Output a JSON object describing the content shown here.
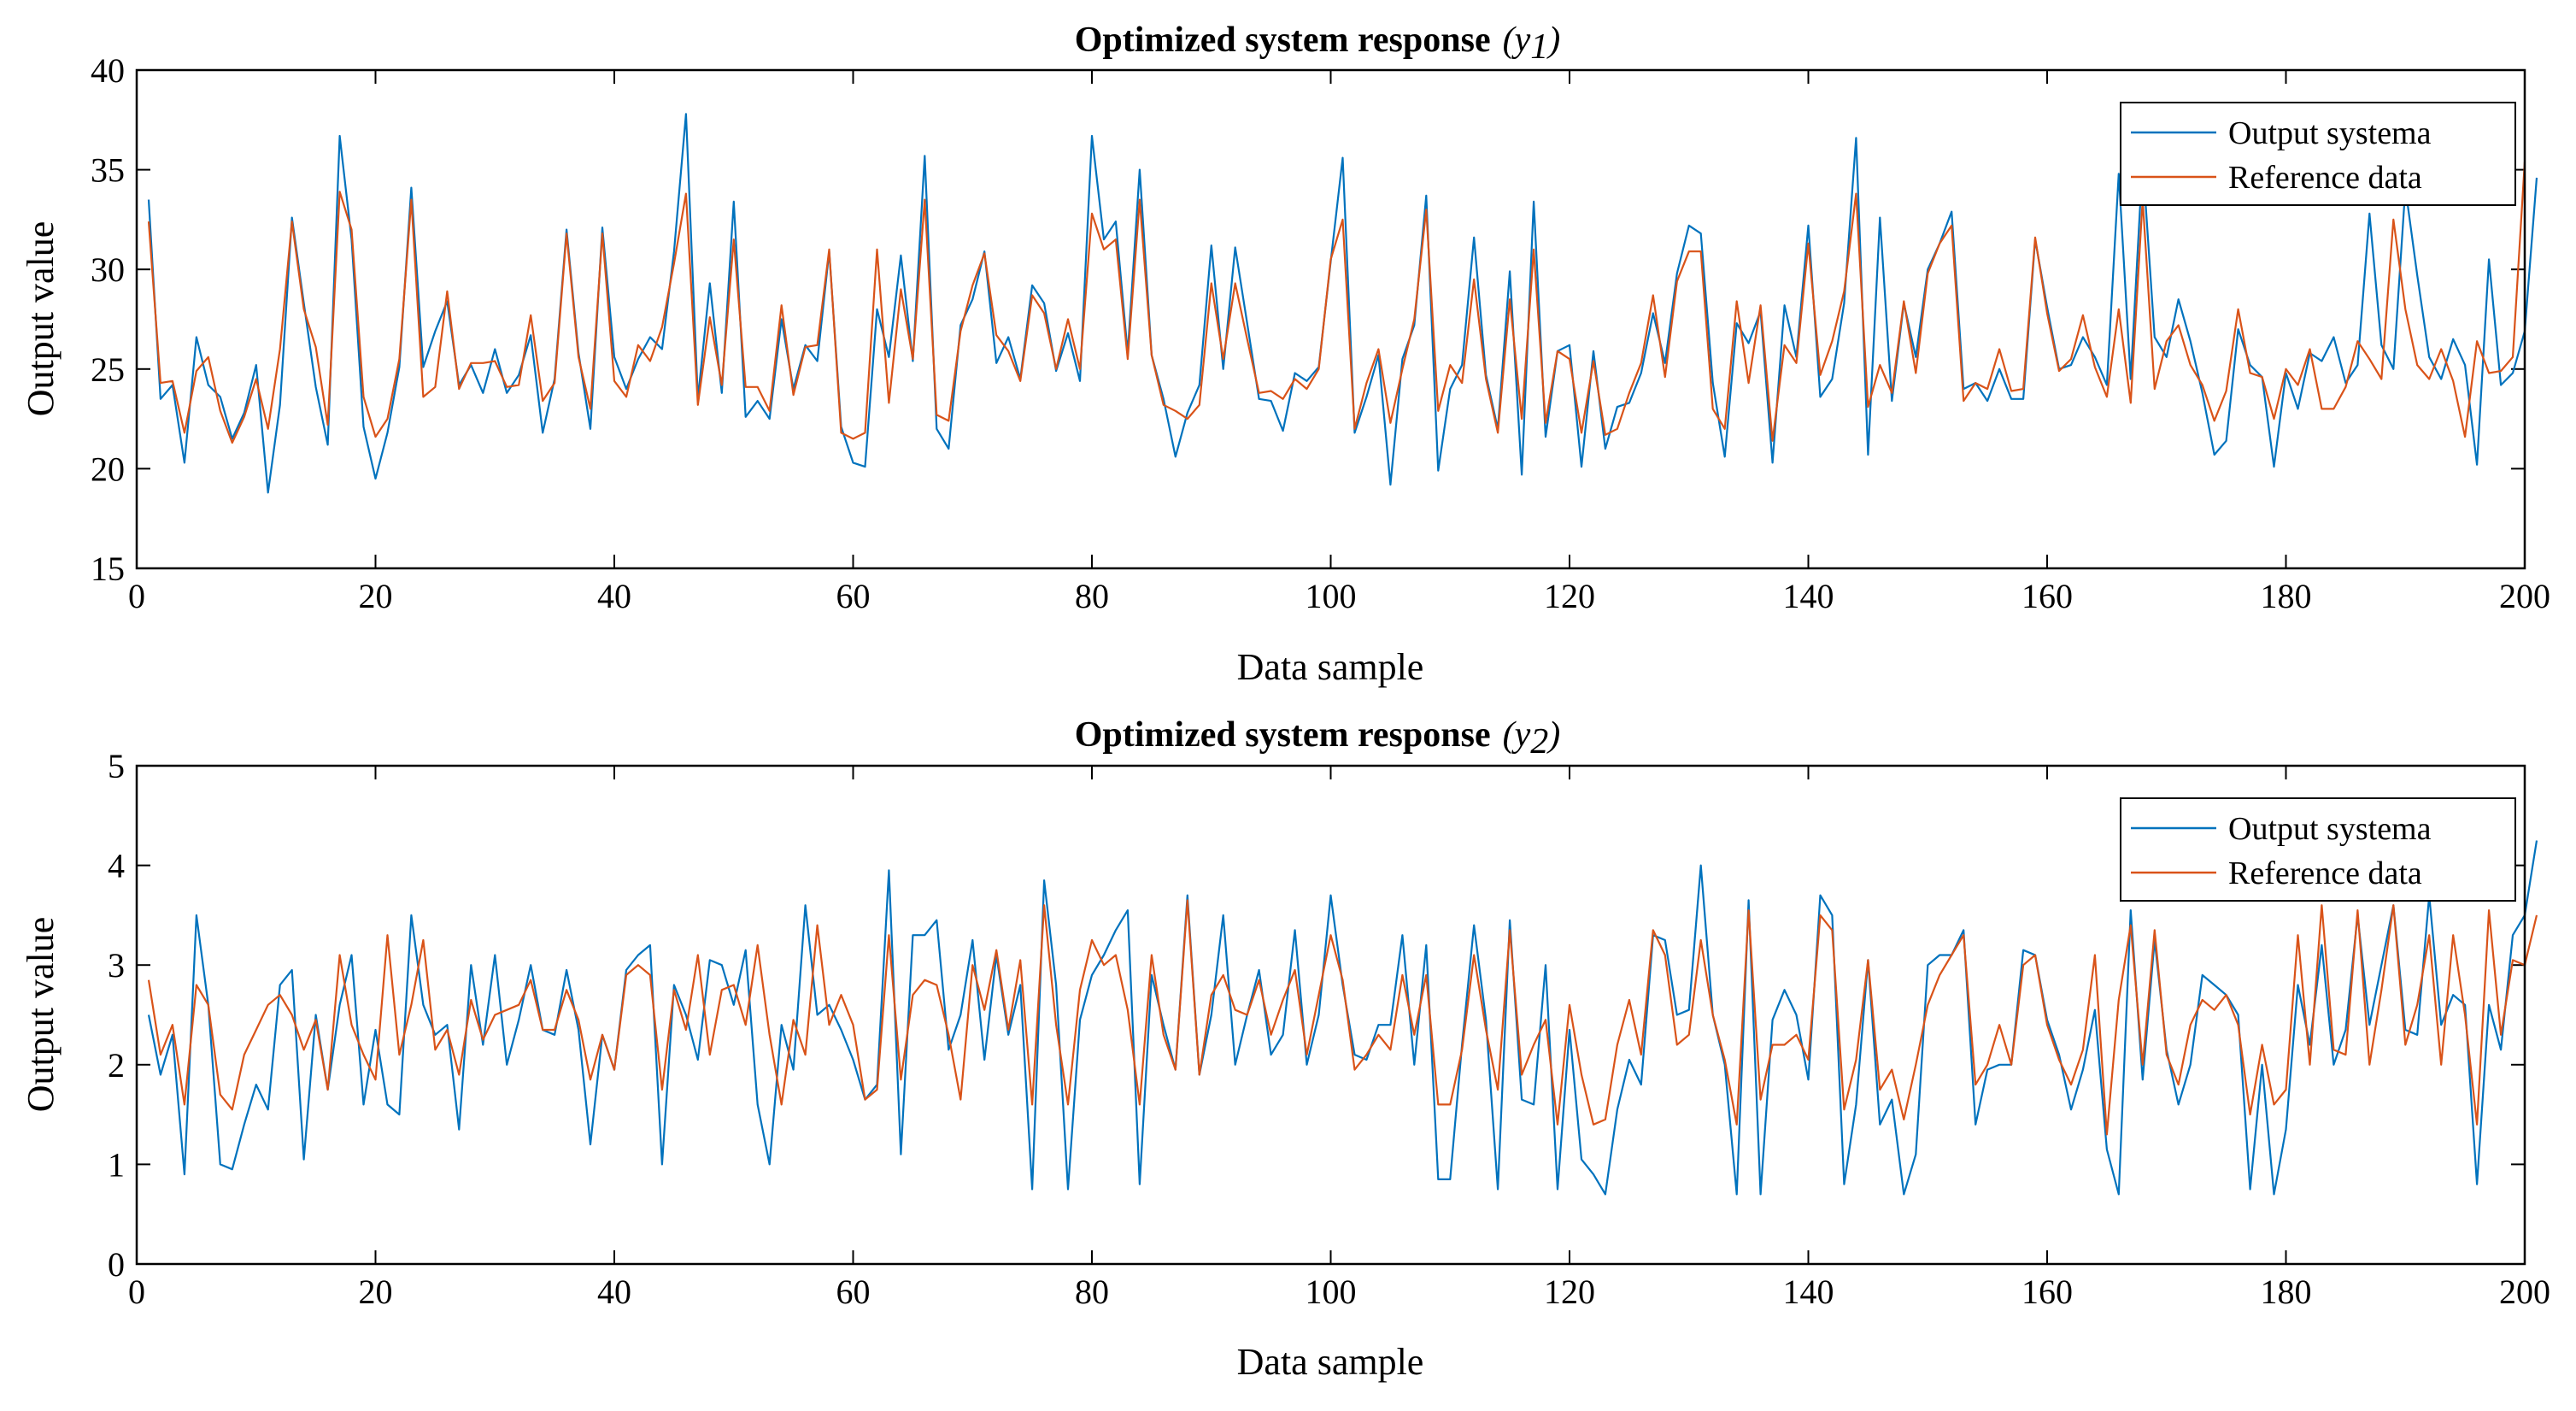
{
  "chart_data": [
    {
      "type": "line",
      "title_main": "Optimized system response",
      "title_var": "(y",
      "title_sub": "1",
      "title_close": ")",
      "xlabel": "Data sample",
      "ylabel": "Output value",
      "xlim": [
        0,
        200
      ],
      "ylim": [
        15,
        40
      ],
      "xticks": [
        0,
        20,
        40,
        60,
        80,
        100,
        120,
        140,
        160,
        180,
        200
      ],
      "yticks": [
        15,
        20,
        25,
        30,
        35,
        40
      ],
      "legend": "top-right",
      "x_start": 1,
      "series": [
        {
          "name": "Output systema",
          "color": "#0072BD",
          "values": [
            33.5,
            23.5,
            24.2,
            20.3,
            26.6,
            24.2,
            23.6,
            21.5,
            22.8,
            25.2,
            18.8,
            23.2,
            32.6,
            28.3,
            24.1,
            21.2,
            36.7,
            31.5,
            22.1,
            19.5,
            21.8,
            25.1,
            34.1,
            25.1,
            26.9,
            28.4,
            24.2,
            25.2,
            23.8,
            26.0,
            23.8,
            24.7,
            26.7,
            21.8,
            24.5,
            32.0,
            25.8,
            22.0,
            32.1,
            25.6,
            24.0,
            25.5,
            26.6,
            26.0,
            30.9,
            37.8,
            23.5,
            29.3,
            23.8,
            33.4,
            22.6,
            23.4,
            22.5,
            27.5,
            24.0,
            26.2,
            25.4,
            30.9,
            22.1,
            20.3,
            20.1,
            28.0,
            25.6,
            30.7,
            25.4,
            35.7,
            22.0,
            21.0,
            27.2,
            28.5,
            30.9,
            25.3,
            26.6,
            24.5,
            29.2,
            28.3,
            24.9,
            26.8,
            24.4,
            36.7,
            31.5,
            32.4,
            25.8,
            35.0,
            25.7,
            23.5,
            20.6,
            22.8,
            24.2,
            31.2,
            25.0,
            31.1,
            27.3,
            23.5,
            23.4,
            21.9,
            24.8,
            24.4,
            25.1,
            30.4,
            35.6,
            21.8,
            23.6,
            25.7,
            19.2,
            25.5,
            27.2,
            33.7,
            19.9,
            24.0,
            25.2,
            31.6,
            24.7,
            22.0,
            29.9,
            19.7,
            33.4,
            21.6,
            25.9,
            26.2,
            20.1,
            25.9,
            21.0,
            23.1,
            23.3,
            24.8,
            27.8,
            25.3,
            29.8,
            32.2,
            31.8,
            24.3,
            20.6,
            27.3,
            26.3,
            27.9,
            20.3,
            28.2,
            25.6,
            32.2,
            23.6,
            24.5,
            28.3,
            36.6,
            20.7,
            32.6,
            23.4,
            28.3,
            25.6,
            30.0,
            31.3,
            32.9,
            24.0,
            24.3,
            23.4,
            25.0,
            23.5,
            23.5,
            31.5,
            28.1,
            25.0,
            25.2,
            26.6,
            25.6,
            24.2,
            34.8,
            24.5,
            35.5,
            26.6,
            25.6,
            28.5,
            26.4,
            23.8,
            20.7,
            21.4,
            27.0,
            25.2,
            24.6,
            20.1,
            24.8,
            23.0,
            25.8,
            25.4,
            26.6,
            24.3,
            25.2,
            32.8,
            26.2,
            25.0,
            34.1,
            29.7,
            25.6,
            24.5,
            26.5,
            25.2,
            20.2,
            30.5,
            24.2,
            24.8,
            26.9,
            34.6
          ]
        },
        {
          "name": "Reference data",
          "color": "#D95319",
          "values": [
            32.4,
            24.3,
            24.4,
            21.8,
            24.9,
            25.6,
            22.9,
            21.3,
            22.6,
            24.5,
            22.0,
            26.0,
            32.4,
            28.0,
            26.1,
            22.2,
            33.9,
            32.0,
            23.6,
            21.6,
            22.5,
            25.5,
            33.5,
            23.6,
            24.1,
            28.9,
            24.0,
            25.3,
            25.3,
            25.4,
            24.1,
            24.2,
            27.7,
            23.4,
            24.3,
            31.8,
            25.6,
            23.0,
            31.8,
            24.4,
            23.6,
            26.2,
            25.4,
            27.1,
            30.3,
            33.8,
            23.2,
            27.6,
            24.2,
            31.5,
            24.1,
            24.1,
            22.9,
            28.2,
            23.7,
            26.1,
            26.2,
            31.0,
            21.8,
            21.5,
            21.8,
            31.0,
            23.3,
            29.0,
            25.5,
            33.5,
            22.7,
            22.4,
            26.9,
            29.2,
            30.8,
            26.7,
            25.9,
            24.4,
            28.7,
            27.8,
            25.0,
            27.5,
            25.0,
            32.8,
            31.0,
            31.5,
            25.5,
            33.5,
            25.7,
            23.2,
            22.9,
            22.5,
            23.2,
            29.3,
            25.5,
            29.3,
            26.5,
            23.8,
            23.9,
            23.5,
            24.5,
            24.0,
            25.0,
            30.5,
            32.5,
            22.0,
            24.3,
            26.0,
            22.3,
            25.0,
            27.5,
            33.0,
            22.9,
            25.2,
            24.3,
            29.5,
            24.5,
            21.8,
            28.5,
            22.5,
            31.0,
            22.3,
            25.9,
            25.5,
            21.8,
            25.4,
            21.7,
            22.0,
            23.8,
            25.3,
            28.7,
            24.6,
            29.4,
            30.9,
            30.9,
            23.0,
            22.0,
            28.4,
            24.3,
            28.2,
            21.4,
            26.2,
            25.3,
            31.3,
            24.7,
            26.4,
            28.9,
            33.8,
            23.1,
            25.2,
            23.8,
            28.4,
            24.8,
            29.8,
            31.3,
            32.2,
            23.4,
            24.3,
            24.0,
            26.0,
            23.9,
            24.0,
            31.6,
            27.8,
            24.9,
            25.5,
            27.7,
            25.1,
            23.6,
            28.0,
            23.3,
            33.5,
            24.0,
            26.4,
            27.2,
            25.2,
            24.2,
            22.4,
            23.9,
            28.0,
            24.8,
            24.6,
            22.5,
            25.0,
            24.2,
            26.0,
            23.0,
            23.0,
            24.1,
            26.4,
            25.5,
            24.5,
            32.5,
            28.0,
            25.2,
            24.5,
            26.0,
            24.4,
            21.6,
            26.4,
            24.8,
            24.9,
            25.6,
            35.4
          ]
        }
      ]
    },
    {
      "type": "line",
      "title_main": "Optimized system response",
      "title_var": "(y",
      "title_sub": "2",
      "title_close": ")",
      "xlabel": "Data sample",
      "ylabel": "Output value",
      "xlim": [
        0,
        200
      ],
      "ylim": [
        0,
        5
      ],
      "xticks": [
        0,
        20,
        40,
        60,
        80,
        100,
        120,
        140,
        160,
        180,
        200
      ],
      "yticks": [
        0,
        1,
        2,
        3,
        4,
        5
      ],
      "legend": "top-right",
      "x_start": 1,
      "series": [
        {
          "name": "Output systema",
          "color": "#0072BD",
          "values": [
            2.5,
            1.9,
            2.3,
            0.9,
            3.5,
            2.6,
            1.0,
            0.95,
            1.4,
            1.8,
            1.55,
            2.8,
            2.95,
            1.05,
            2.5,
            1.75,
            2.6,
            3.1,
            1.6,
            2.35,
            1.6,
            1.5,
            3.5,
            2.6,
            2.3,
            2.4,
            1.35,
            3.0,
            2.2,
            3.1,
            2.0,
            2.45,
            3.0,
            2.35,
            2.3,
            2.95,
            2.35,
            1.2,
            2.3,
            1.95,
            2.95,
            3.1,
            3.2,
            1.0,
            2.8,
            2.5,
            2.05,
            3.05,
            3.0,
            2.6,
            3.15,
            1.6,
            1.0,
            2.4,
            1.95,
            3.6,
            2.5,
            2.6,
            2.35,
            2.05,
            1.65,
            1.8,
            3.95,
            1.1,
            3.3,
            3.3,
            3.45,
            2.15,
            2.5,
            3.25,
            2.05,
            3.1,
            2.3,
            2.8,
            0.75,
            3.85,
            2.8,
            0.75,
            2.45,
            2.9,
            3.1,
            3.35,
            3.55,
            0.8,
            2.9,
            2.4,
            1.95,
            3.7,
            1.9,
            2.5,
            3.5,
            2.0,
            2.5,
            2.95,
            2.1,
            2.3,
            3.35,
            2.0,
            2.5,
            3.7,
            2.8,
            2.1,
            2.05,
            2.4,
            2.4,
            3.3,
            2.0,
            3.2,
            0.85,
            0.85,
            2.2,
            3.4,
            2.45,
            0.75,
            3.45,
            1.65,
            1.6,
            3.0,
            0.75,
            2.35,
            1.05,
            0.9,
            0.7,
            1.55,
            2.05,
            1.8,
            3.3,
            3.25,
            2.5,
            2.55,
            4.0,
            2.5,
            2.0,
            0.7,
            3.65,
            0.7,
            2.45,
            2.75,
            2.5,
            1.85,
            3.7,
            3.5,
            0.8,
            1.6,
            3.05,
            1.4,
            1.65,
            0.7,
            1.1,
            3.0,
            3.1,
            3.1,
            3.35,
            1.4,
            1.95,
            2.0,
            2.0,
            3.15,
            3.1,
            2.45,
            2.1,
            1.55,
            1.95,
            2.55,
            1.15,
            0.7,
            3.55,
            1.85,
            3.25,
            2.15,
            1.6,
            2.0,
            2.9,
            2.8,
            2.7,
            2.5,
            0.75,
            2.0,
            0.7,
            1.35,
            2.8,
            2.2,
            3.2,
            2.0,
            2.35,
            3.5,
            2.4,
            3.0,
            3.6,
            2.35,
            2.3,
            3.7,
            2.4,
            2.7,
            2.6,
            0.8,
            2.6,
            2.15,
            3.3,
            3.5,
            4.25
          ]
        },
        {
          "name": "Reference data",
          "color": "#D95319",
          "values": [
            2.85,
            2.1,
            2.4,
            1.6,
            2.8,
            2.6,
            1.7,
            1.55,
            2.1,
            2.35,
            2.6,
            2.7,
            2.5,
            2.15,
            2.45,
            1.75,
            3.1,
            2.4,
            2.1,
            1.85,
            3.3,
            2.1,
            2.6,
            3.25,
            2.15,
            2.35,
            1.9,
            2.65,
            2.25,
            2.5,
            2.55,
            2.6,
            2.85,
            2.35,
            2.35,
            2.75,
            2.45,
            1.85,
            2.3,
            1.95,
            2.9,
            3.0,
            2.9,
            1.75,
            2.75,
            2.35,
            3.1,
            2.1,
            2.75,
            2.8,
            2.4,
            3.2,
            2.3,
            1.6,
            2.45,
            2.1,
            3.4,
            2.4,
            2.7,
            2.4,
            1.65,
            1.75,
            3.3,
            1.85,
            2.7,
            2.85,
            2.8,
            2.3,
            1.65,
            3.0,
            2.55,
            3.15,
            2.35,
            3.05,
            1.6,
            3.6,
            2.4,
            1.6,
            2.75,
            3.25,
            3.0,
            3.1,
            2.55,
            1.6,
            3.1,
            2.3,
            1.95,
            3.65,
            1.9,
            2.7,
            2.9,
            2.55,
            2.5,
            2.85,
            2.3,
            2.65,
            2.95,
            2.1,
            2.7,
            3.3,
            2.85,
            1.95,
            2.1,
            2.3,
            2.15,
            2.9,
            2.3,
            2.9,
            1.6,
            1.6,
            2.15,
            3.1,
            2.35,
            1.75,
            3.35,
            1.9,
            2.2,
            2.45,
            1.4,
            2.6,
            1.9,
            1.4,
            1.45,
            2.2,
            2.65,
            2.1,
            3.35,
            3.1,
            2.2,
            2.3,
            3.25,
            2.5,
            2.05,
            1.4,
            3.55,
            1.65,
            2.2,
            2.2,
            2.3,
            2.05,
            3.5,
            3.35,
            1.55,
            2.05,
            3.05,
            1.75,
            1.95,
            1.45,
            2.0,
            2.6,
            2.9,
            3.1,
            3.3,
            1.8,
            2.0,
            2.4,
            2.0,
            3.0,
            3.1,
            2.4,
            2.05,
            1.8,
            2.15,
            3.1,
            1.3,
            2.65,
            3.4,
            2.0,
            3.35,
            2.1,
            1.8,
            2.4,
            2.65,
            2.55,
            2.7,
            2.4,
            1.5,
            2.2,
            1.6,
            1.75,
            3.3,
            2.0,
            3.6,
            2.15,
            2.1,
            3.55,
            2.0,
            2.75,
            3.6,
            2.2,
            2.6,
            3.3,
            2.0,
            3.3,
            2.5,
            1.4,
            3.55,
            2.3,
            3.05,
            3.0,
            3.5
          ]
        }
      ]
    }
  ]
}
